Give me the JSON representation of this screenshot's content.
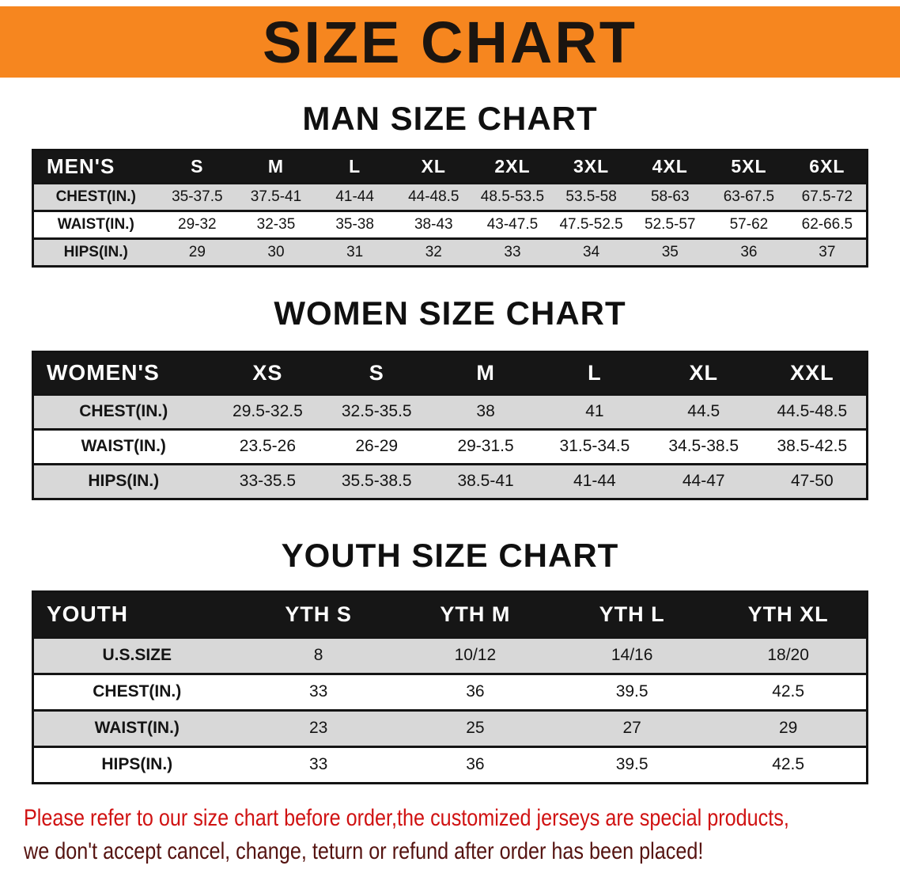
{
  "banner": {
    "title": "SIZE CHART"
  },
  "colors": {
    "banner_bg": "#f6861f",
    "header_bg": "#161616",
    "stripe": "#d8d8d8",
    "note_line1": "#d01212",
    "note_line2": "#551310"
  },
  "men": {
    "heading": "MAN SIZE CHART",
    "header": [
      "MEN'S",
      "S",
      "M",
      "L",
      "XL",
      "2XL",
      "3XL",
      "4XL",
      "5XL",
      "6XL"
    ],
    "rows": [
      [
        "CHEST(IN.)",
        "35-37.5",
        "37.5-41",
        "41-44",
        "44-48.5",
        "48.5-53.5",
        "53.5-58",
        "58-63",
        "63-67.5",
        "67.5-72"
      ],
      [
        "WAIST(IN.)",
        "29-32",
        "32-35",
        "35-38",
        "38-43",
        "43-47.5",
        "47.5-52.5",
        "52.5-57",
        "57-62",
        "62-66.5"
      ],
      [
        "HIPS(IN.)",
        "29",
        "30",
        "31",
        "32",
        "33",
        "34",
        "35",
        "36",
        "37"
      ]
    ]
  },
  "women": {
    "heading": "WOMEN SIZE CHART",
    "header": [
      "WOMEN'S",
      "XS",
      "S",
      "M",
      "L",
      "XL",
      "XXL"
    ],
    "rows": [
      [
        "CHEST(IN.)",
        "29.5-32.5",
        "32.5-35.5",
        "38",
        "41",
        "44.5",
        "44.5-48.5"
      ],
      [
        "WAIST(IN.)",
        "23.5-26",
        "26-29",
        "29-31.5",
        "31.5-34.5",
        "34.5-38.5",
        "38.5-42.5"
      ],
      [
        "HIPS(IN.)",
        "33-35.5",
        "35.5-38.5",
        "38.5-41",
        "41-44",
        "44-47",
        "47-50"
      ]
    ]
  },
  "youth": {
    "heading": "YOUTH SIZE CHART",
    "header": [
      "YOUTH",
      "YTH S",
      "YTH M",
      "YTH L",
      "YTH XL"
    ],
    "rows": [
      [
        "U.S.SIZE",
        "8",
        "10/12",
        "14/16",
        "18/20"
      ],
      [
        "CHEST(IN.)",
        "33",
        "36",
        "39.5",
        "42.5"
      ],
      [
        "WAIST(IN.)",
        "23",
        "25",
        "27",
        "29"
      ],
      [
        "HIPS(IN.)",
        "33",
        "36",
        "39.5",
        "42.5"
      ]
    ]
  },
  "note": {
    "line1": "Please refer to our size chart before order,the customized jerseys are special products,",
    "line2": "we don't accept cancel, change, teturn or refund after order has been placed!"
  }
}
